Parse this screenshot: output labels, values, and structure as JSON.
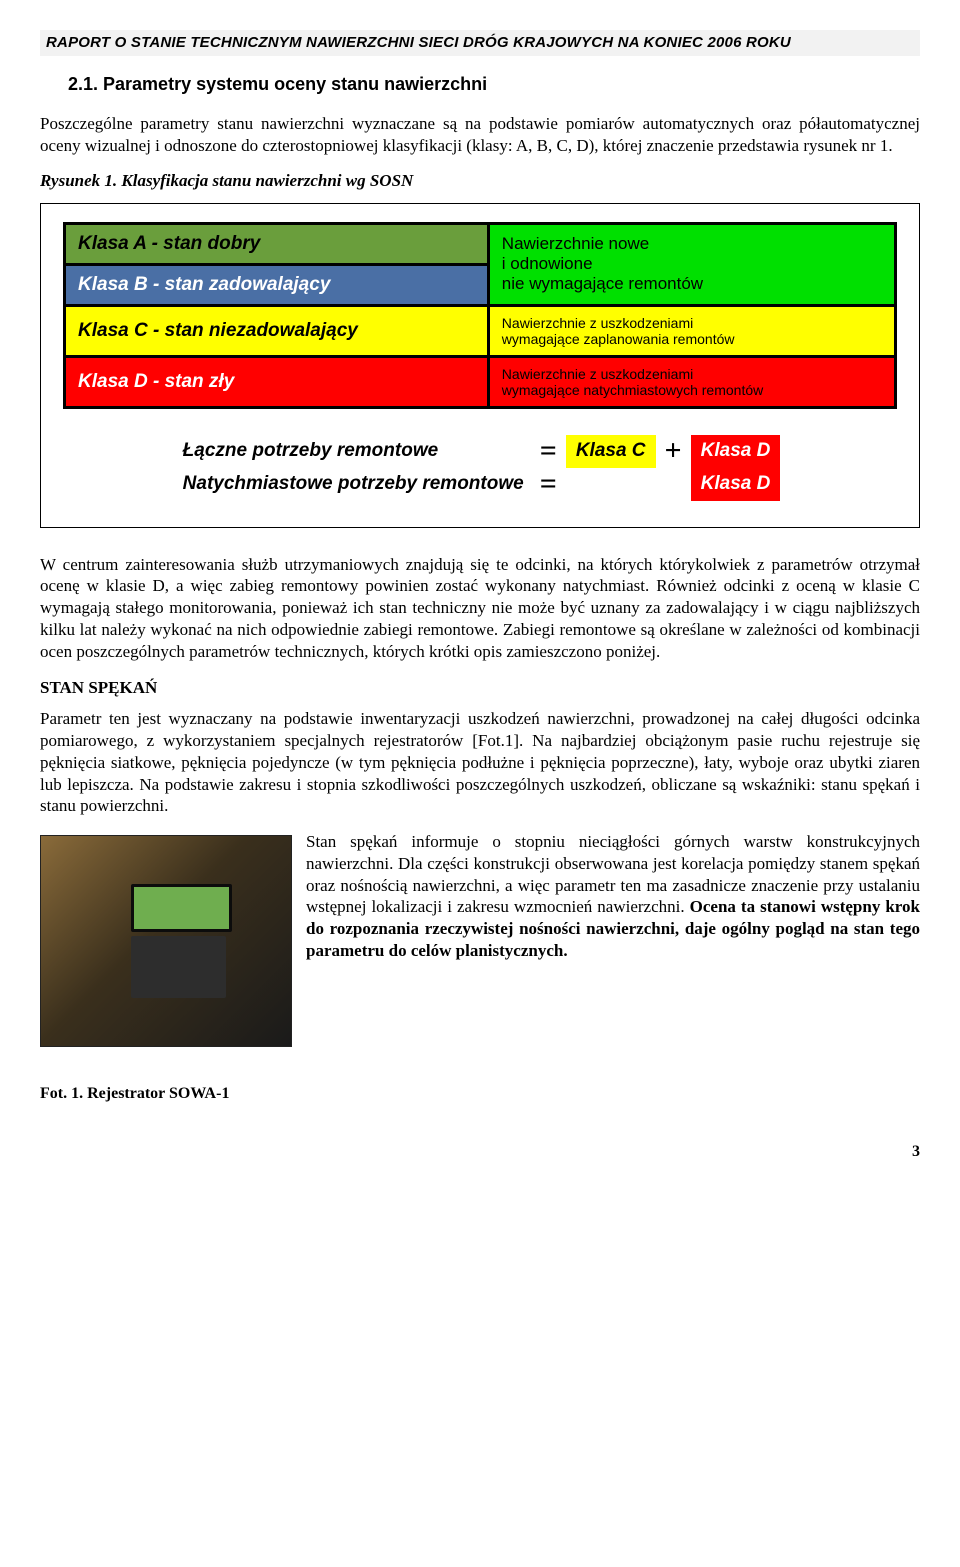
{
  "header": {
    "title": "RAPORT O STANIE TECHNICZNYM NAWIERZCHNI SIECI DRÓG KRAJOWYCH NA KONIEC 2006 ROKU"
  },
  "section": {
    "number_title": "2.1. Parametry systemu oceny stanu nawierzchni"
  },
  "intro_paragraph": "Poszczególne parametry stanu nawierzchni wyznaczane są na podstawie pomiarów automatycznych oraz półautomatycznej oceny wizualnej i odnoszone do czterostopniowej klasyfikacji (klasy: A, B, C, D), której znaczenie przedstawia rysunek nr 1.",
  "figure": {
    "prefix": "Rysunek 1.",
    "caption": "Klasyfikacja stanu nawierzchni wg SOSN"
  },
  "classification": {
    "rows": [
      {
        "left": "Klasa A - stan dobry",
        "left_bg": "#6a9e3c",
        "right_line1": "Nawierzchnie nowe",
        "right_line2": "i odnowione",
        "right_bg": "#00e000",
        "right_font_small": false,
        "right_rowspan_start": true
      },
      {
        "left": "Klasa B - stan zadowalający",
        "left_bg": "#4a6fa5",
        "right_line1": "nie wymagające remontów",
        "right_bg": "#00e000"
      },
      {
        "left": "Klasa C - stan niezadowalający",
        "left_bg": "#ffff00",
        "right_line1": "Nawierzchnie z uszkodzeniami",
        "right_line2": "wymagające zaplanowania remontów",
        "right_bg": "#ffff00",
        "right_font_small": true
      },
      {
        "left": "Klasa D - stan zły",
        "left_bg": "#ff0000",
        "left_color": "#ffffff",
        "right_line1": "Nawierzchnie z uszkodzeniami",
        "right_line2": "wymagające natychmiastowych remontów",
        "right_bg": "#ff0000",
        "right_font_small": true
      }
    ]
  },
  "equations": {
    "row1": {
      "label": "Łączne potrzeby remontowe",
      "eq": "=",
      "term1": "Klasa C",
      "plus": "+",
      "term2": "Klasa D"
    },
    "row2": {
      "label": "Natychmiastowe potrzeby remontowe",
      "eq": "=",
      "term": "Klasa D"
    }
  },
  "center_paragraph": "W centrum zainteresowania służb utrzymaniowych znajdują się te odcinki, na których którykolwiek z parametrów otrzymał ocenę w klasie D, a więc zabieg remontowy powinien zostać wykonany natychmiast. Również odcinki z oceną w klasie C wymagają stałego monitorowania, ponieważ ich stan techniczny nie może być uznany za zadowalający i w ciągu najbliższych kilku lat należy wykonać na nich odpowiednie zabiegi remontowe. Zabiegi remontowe są określane w zależności od kombinacji ocen poszczególnych parametrów technicznych, których krótki opis zamieszczono poniżej.",
  "stan_heading": "STAN SPĘKAŃ",
  "stan_para1": "Parametr ten jest wyznaczany na podstawie inwentaryzacji uszkodzeń nawierzchni, prowadzonej na całej długości odcinka pomiarowego, z wykorzystaniem specjalnych rejestratorów [Fot.1]. Na najbardziej obciążonym pasie ruchu rejestruje się pęknięcia siatkowe, pęknięcia pojedyncze (w tym pęknięcia podłużne i pęknięcia poprzeczne), łaty, wyboje oraz ubytki ziaren lub lepiszcza. Na podstawie zakresu i stopnia szkodliwości poszczególnych uszkodzeń, obliczane są wskaźniki: stanu spękań i stanu powierzchni.",
  "stan_para2_plain": "Stan spękań informuje o stopniu nieciągłości górnych warstw konstrukcyjnych nawierzchni. Dla części konstrukcji obserwowana jest korelacja pomiędzy stanem spękań oraz nośnością nawierzchni, a więc parametr ten ma zasadnicze znaczenie przy ustalaniu wstępnej lokalizacji i zakresu wzmocnień nawierzchni. ",
  "stan_para2_bold": "Ocena ta stanowi wstępny krok do rozpoznania rzeczywistej nośności nawierzchni, daje ogólny pogląd na stan tego parametru do celów planistycznych.",
  "photo_caption": "Fot. 1. Rejestrator SOWA-1",
  "page_number": "3"
}
